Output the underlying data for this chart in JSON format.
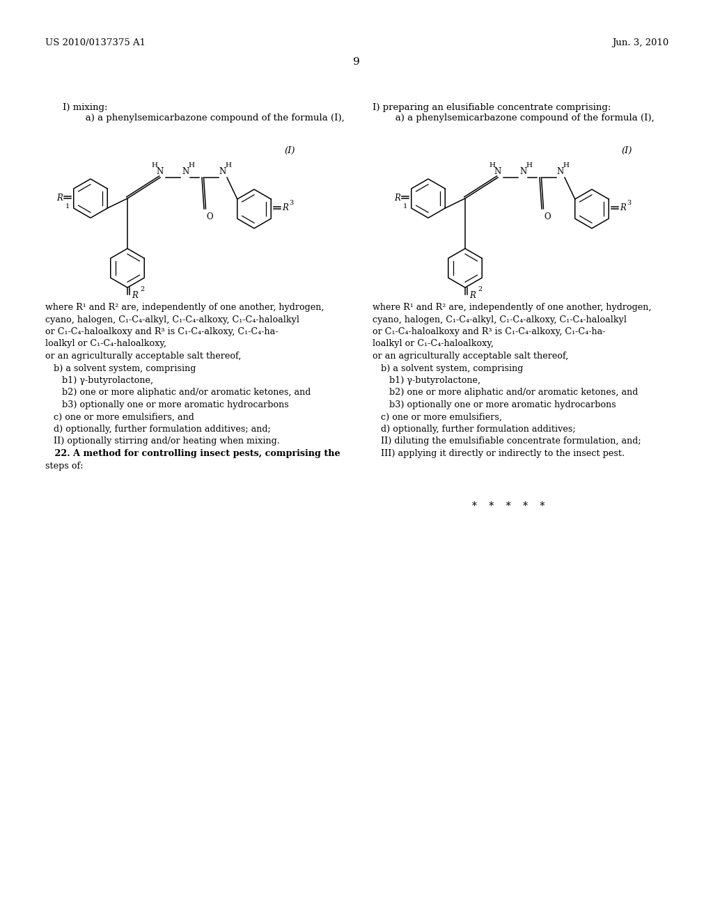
{
  "background_color": "#ffffff",
  "header_left": "US 2010/0137375 A1",
  "header_right": "Jun. 3, 2010",
  "page_number": "9",
  "left_intro": [
    "I) mixing:",
    "   a) a phenylsemicarbazone compound of the formula (I),"
  ],
  "right_intro": [
    "I) preparing an elusifiable concentrate comprising:",
    "   a) a phenylsemicarbazone compound of the formula (I),"
  ],
  "left_body_lines": [
    "where R¹ and R² are, independently of one another, hydrogen,",
    "cyano, halogen, C₁-C₄-alkyl, C₁-C₄-alkoxy, C₁-C₄-haloalkyl",
    "or C₁-C₄-haloalkoxy and R³ is C₁-C₄-alkoxy, C₁-C₄-ha-",
    "loalkyl or C₁-C₄-haloalkoxy,",
    "or an agriculturally acceptable salt thereof,",
    "   b) a solvent system, comprising",
    "      b1) γ-butyrolactone,",
    "      b2) one or more aliphatic and/or aromatic ketones, and",
    "      b3) optionally one or more aromatic hydrocarbons",
    "   c) one or more emulsifiers, and",
    "   d) optionally, further formulation additives; and;",
    "   II) optionally stirring and/or heating when mixing.",
    "   22. A method for controlling insect pests, comprising the",
    "steps of:"
  ],
  "right_body_lines": [
    "where R¹ and R² are, independently of one another, hydrogen,",
    "cyano, halogen, C₁-C₄-alkyl, C₁-C₄-alkoxy, C₁-C₄-haloalkyl",
    "or C₁-C₄-haloalkoxy and R³ is C₁-C₄-alkoxy, C₁-C₄-ha-",
    "loalkyl or C₁-C₄-haloalkoxy,",
    "or an agriculturally acceptable salt thereof,",
    "   b) a solvent system, comprising",
    "      b1) γ-butyrolactone,",
    "      b2) one or more aliphatic and/or aromatic ketones, and",
    "      b3) optionally one or more aromatic hydrocarbons",
    "   c) one or more emulsifiers,",
    "   d) optionally, further formulation additives;",
    "   II) diluting the emulsifiable concentrate formulation, and;",
    "   III) applying it directly or indirectly to the insect pest."
  ]
}
